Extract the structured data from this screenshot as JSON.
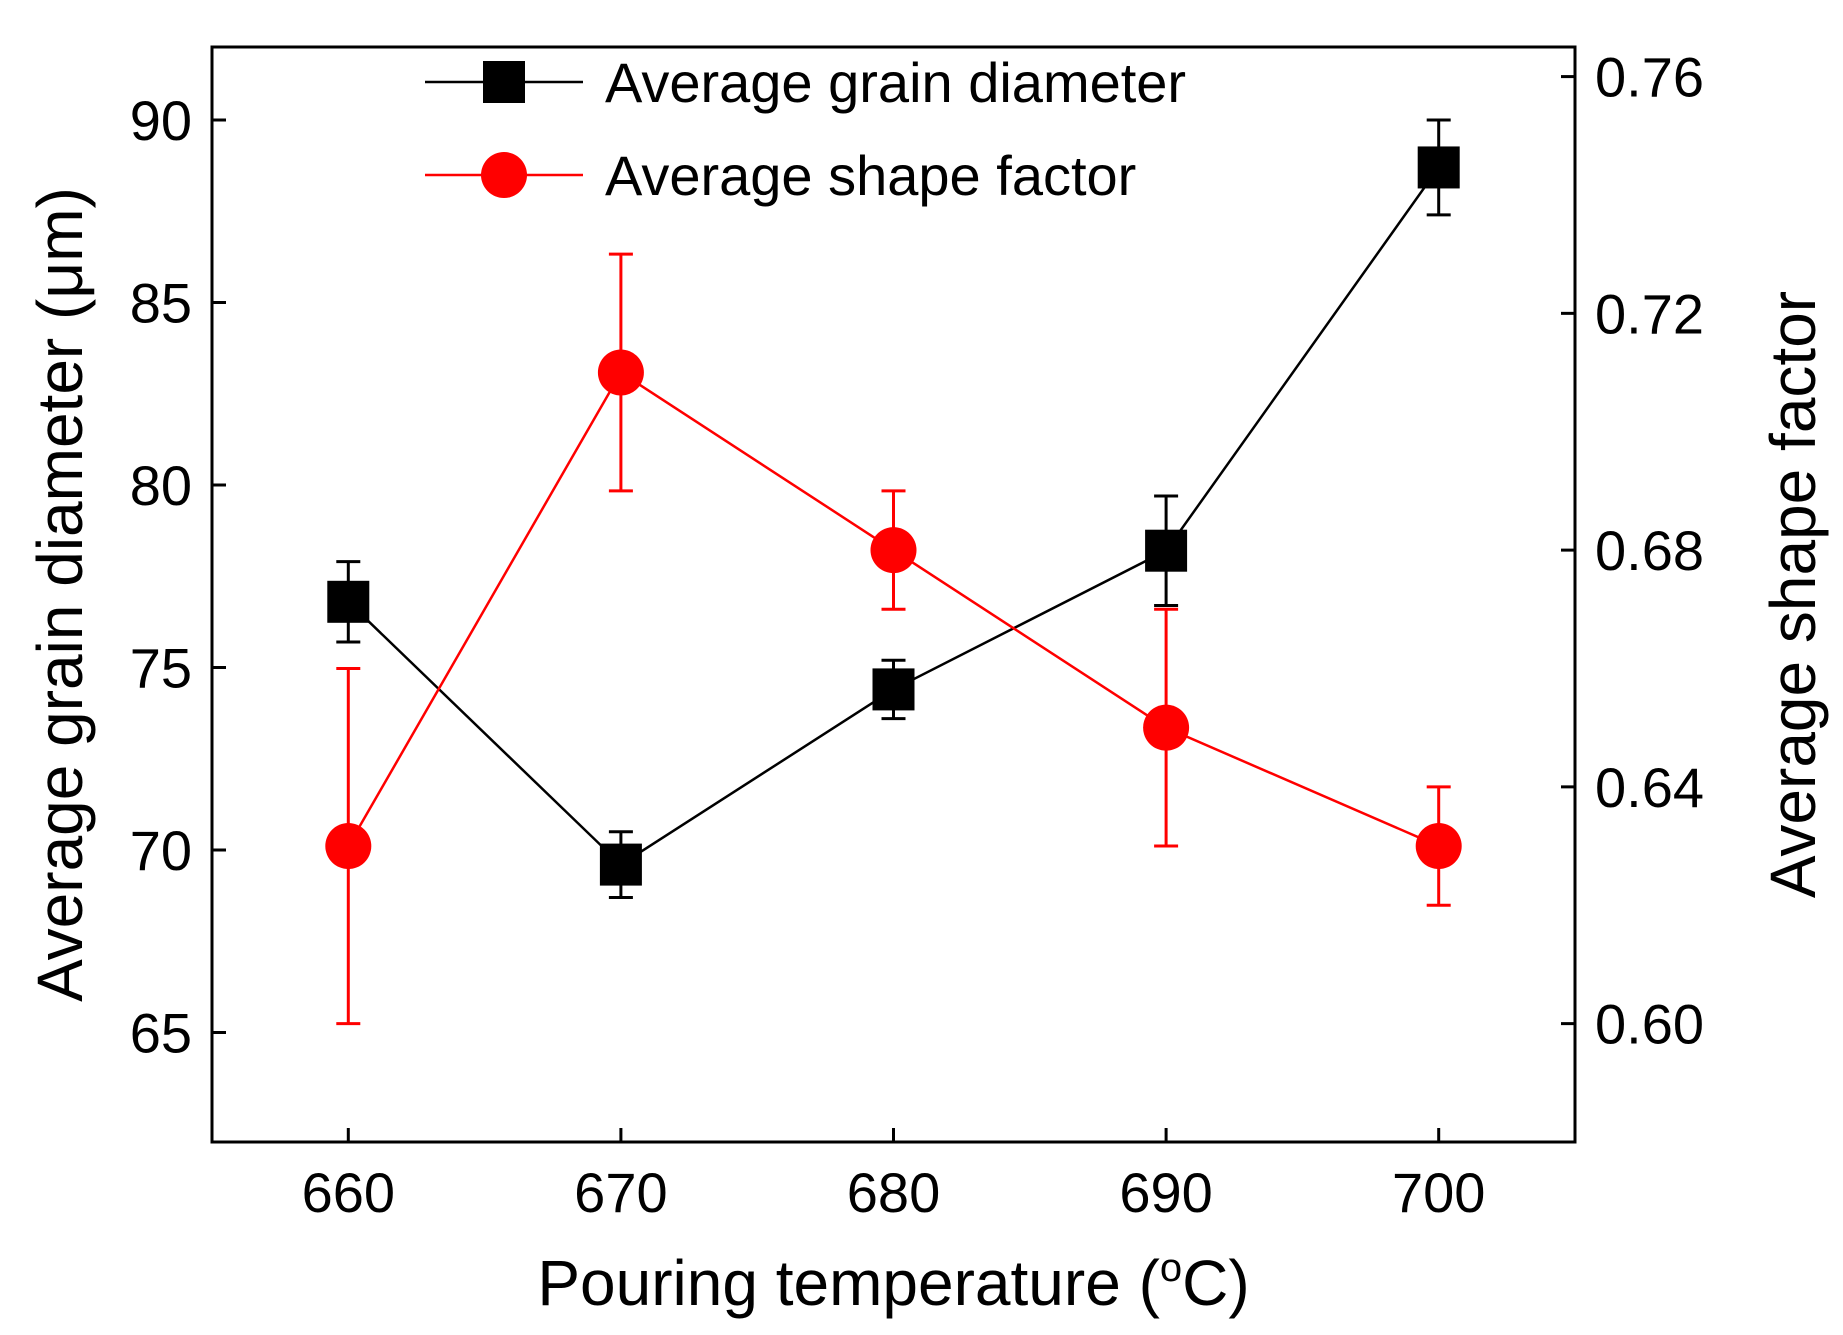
{
  "chart_data": {
    "type": "line",
    "title": "",
    "x": [
      660,
      670,
      680,
      690,
      700
    ],
    "xlabel": "Pouring temperature (°C)",
    "xlabel_parts": {
      "prefix": "Pouring temperature (",
      "superscript": "o",
      "suffix": "C)"
    },
    "xlim": [
      655,
      705
    ],
    "xticks": [
      660,
      670,
      680,
      690,
      700
    ],
    "y_left": {
      "label": "Average grain diameter (μm)",
      "lim": [
        62,
        92
      ],
      "ticks": [
        65,
        70,
        75,
        80,
        85,
        90
      ]
    },
    "y_right": {
      "label": "Average shape factor",
      "lim": [
        0.58,
        0.765
      ],
      "ticks": [
        0.6,
        0.64,
        0.68,
        0.72,
        0.76
      ],
      "tick_labels": [
        "0.60",
        "0.64",
        "0.68",
        "0.72",
        "0.76"
      ]
    },
    "series": [
      {
        "name": "Average grain diameter",
        "axis": "left",
        "marker": "square",
        "color": "#000000",
        "values": [
          76.8,
          69.6,
          74.4,
          78.2,
          88.7
        ],
        "errors": [
          1.1,
          0.9,
          0.8,
          1.5,
          1.3
        ]
      },
      {
        "name": "Average shape factor",
        "axis": "right",
        "marker": "circle",
        "color": "#ff0000",
        "values": [
          0.63,
          0.71,
          0.68,
          0.65,
          0.63
        ],
        "errors": [
          0.03,
          0.02,
          0.01,
          0.02,
          0.01
        ]
      }
    ],
    "legend": "top-left",
    "grid": false
  }
}
